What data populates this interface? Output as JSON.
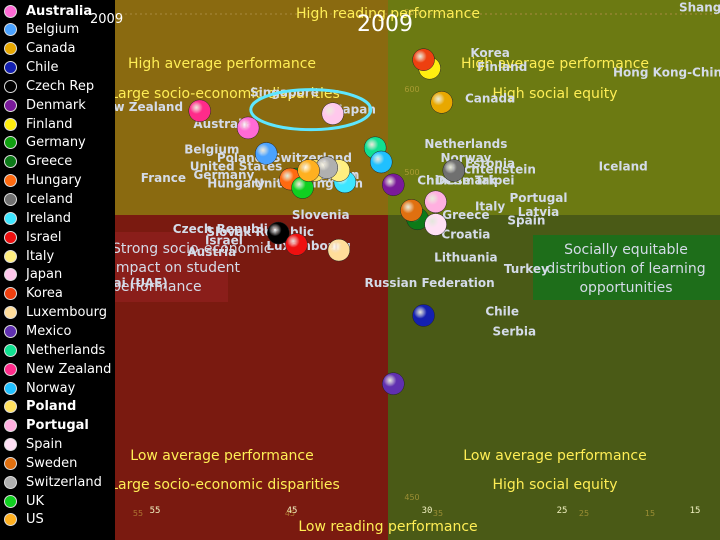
{
  "year": "2009",
  "colors": {
    "q_top_left": "#8a6a10",
    "q_top_right": "#6c7a12",
    "q_bottom_left": "#7a1a10",
    "q_bottom_right": "#4a5a16",
    "equity_box": "#1e6e1a",
    "disparity_box": "#8a1e1a",
    "quadrant_text": "#ffee55",
    "country_text": "#d4dbe8",
    "faded_text": "#d0b048"
  },
  "quadrant_labels": {
    "top": "High reading performance",
    "bottom": "Low reading performance",
    "tl_line1": "High average performance",
    "tl_line2": "Large socio-economic disparities",
    "tr_line1": "High average performance",
    "tr_line2": "High social equity",
    "bl_line1": "Low average performance",
    "bl_line2": "Large socio-economic disparities",
    "br_line1": "Low average performance",
    "br_line2": "High social equity",
    "strong_impact": "Strong socio-economic impact on student performance",
    "socially_equitable": "Socially equitable distribution of learning opportunities"
  },
  "chart_data": {
    "type": "scatter",
    "title": "2009",
    "xlabel": "",
    "ylabel": "",
    "x_ticks": [
      "55",
      "45",
      "30",
      "25",
      "15"
    ],
    "faded_ticks": [
      "55",
      "45",
      "35",
      "25",
      "15",
      "600",
      "500",
      "450",
      "550"
    ],
    "xlim": [
      60,
      10
    ],
    "ylim": [
      370,
      560
    ],
    "country_labels": [
      {
        "text": "Shanghai-China",
        "x": 9,
        "y": 556
      },
      {
        "text": "Korea",
        "x": 29,
        "y": 540
      },
      {
        "text": "Finland",
        "x": 28,
        "y": 535
      },
      {
        "text": "Hong Kong-China",
        "x": 14,
        "y": 533
      },
      {
        "text": "Canada",
        "x": 29,
        "y": 524
      },
      {
        "text": "Singapore",
        "x": 46,
        "y": 526
      },
      {
        "text": "New Zealand",
        "x": 58,
        "y": 521
      },
      {
        "text": "Japan",
        "x": 40,
        "y": 520
      },
      {
        "text": "Australia",
        "x": 51,
        "y": 515
      },
      {
        "text": "Netherlands",
        "x": 31,
        "y": 508
      },
      {
        "text": "Belgium",
        "x": 52,
        "y": 506
      },
      {
        "text": "Norway",
        "x": 31,
        "y": 503
      },
      {
        "text": "Estonia",
        "x": 29,
        "y": 501
      },
      {
        "text": "Poland, Switzerland",
        "x": 46,
        "y": 503
      },
      {
        "text": "United States",
        "x": 50,
        "y": 500
      },
      {
        "text": "Iceland",
        "x": 18,
        "y": 500
      },
      {
        "text": "Liechtenstein",
        "x": 29,
        "y": 499
      },
      {
        "text": "Germany",
        "x": 51,
        "y": 497
      },
      {
        "text": "Sweden",
        "x": 42,
        "y": 497
      },
      {
        "text": "Ireland",
        "x": 42,
        "y": 496
      },
      {
        "text": "Chinese Taipei",
        "x": 31,
        "y": 495
      },
      {
        "text": "France",
        "x": 56,
        "y": 496
      },
      {
        "text": "Hungary",
        "x": 50,
        "y": 494
      },
      {
        "text": "Denmark",
        "x": 31,
        "y": 495
      },
      {
        "text": "United Kingdom",
        "x": 44,
        "y": 494
      },
      {
        "text": "Portugal",
        "x": 25,
        "y": 489
      },
      {
        "text": "Italy",
        "x": 29,
        "y": 486
      },
      {
        "text": "Latvia",
        "x": 25,
        "y": 484
      },
      {
        "text": "Greece",
        "x": 31,
        "y": 483
      },
      {
        "text": "Spain",
        "x": 26,
        "y": 481
      },
      {
        "text": "Slovenia",
        "x": 43,
        "y": 483
      },
      {
        "text": "Czech Republic",
        "x": 51,
        "y": 478
      },
      {
        "text": "Slovak Republic",
        "x": 48,
        "y": 477
      },
      {
        "text": "Israel",
        "x": 51,
        "y": 474
      },
      {
        "text": "Luxembourg",
        "x": 44,
        "y": 472
      },
      {
        "text": "Croatia",
        "x": 31,
        "y": 476
      },
      {
        "text": "Austria",
        "x": 52,
        "y": 470
      },
      {
        "text": "Lithuania",
        "x": 31,
        "y": 468
      },
      {
        "text": "Turkey",
        "x": 26,
        "y": 464
      },
      {
        "text": "Dubai (UAE)",
        "x": 59,
        "y": 459
      },
      {
        "text": "Russian Federation",
        "x": 34,
        "y": 459
      },
      {
        "text": "Chile",
        "x": 28,
        "y": 449
      },
      {
        "text": "Serbia",
        "x": 27,
        "y": 442
      }
    ],
    "series": [
      {
        "name": "Australia",
        "color": "#ff6ad5",
        "x": 49,
        "y": 515
      },
      {
        "name": "Belgium",
        "color": "#4aa2ff",
        "x": 47.5,
        "y": 506
      },
      {
        "name": "Canada",
        "color": "#e8a800",
        "x": 33,
        "y": 524
      },
      {
        "name": "Chile",
        "color": "#1420b0",
        "x": 34.5,
        "y": 449
      },
      {
        "name": "Czech Rep",
        "color": "#000000",
        "x": 46.5,
        "y": 478
      },
      {
        "name": "Denmark",
        "color": "#7a1a9a",
        "x": 37,
        "y": 495
      },
      {
        "name": "Finland",
        "color": "#ffee10",
        "x": 34,
        "y": 536
      },
      {
        "name": "Germany",
        "color": "#10a010",
        "x": 45,
        "y": 497
      },
      {
        "name": "Greece",
        "color": "#0c7a18",
        "x": 35,
        "y": 483
      },
      {
        "name": "Hungary",
        "color": "#ff6a10",
        "x": 45.5,
        "y": 497
      },
      {
        "name": "Iceland",
        "color": "#707070",
        "x": 32,
        "y": 500
      },
      {
        "name": "Ireland",
        "color": "#3ee6ff",
        "x": 41,
        "y": 496
      },
      {
        "name": "Israel",
        "color": "#ee1010",
        "x": 45,
        "y": 474
      },
      {
        "name": "Italy",
        "color": "#ffee80",
        "x": 41.5,
        "y": 500
      },
      {
        "name": "Japan",
        "color": "#ffc8ec",
        "x": 42,
        "y": 520
      },
      {
        "name": "Korea",
        "color": "#ee4010",
        "x": 34.5,
        "y": 539
      },
      {
        "name": "Luxembourg",
        "color": "#ffdd9a",
        "x": 41.5,
        "y": 472
      },
      {
        "name": "Mexico",
        "color": "#6030b0",
        "x": 37,
        "y": 425
      },
      {
        "name": "Netherlands",
        "color": "#10e090",
        "x": 38.5,
        "y": 508
      },
      {
        "name": "New Zealand",
        "color": "#ff2b8a",
        "x": 53,
        "y": 521
      },
      {
        "name": "Norway",
        "color": "#20c0ff",
        "x": 38,
        "y": 503
      },
      {
        "name": "Poland",
        "color": "#ffe060",
        "x": 43.5,
        "y": 500
      },
      {
        "name": "Portugal",
        "color": "#ffb0e0",
        "x": 33.5,
        "y": 489
      },
      {
        "name": "Spain",
        "color": "#ffe0f4",
        "x": 33.5,
        "y": 481
      },
      {
        "name": "Sweden",
        "color": "#e07010",
        "x": 35.5,
        "y": 486
      },
      {
        "name": "Switzerland",
        "color": "#b0b0b0",
        "x": 42.5,
        "y": 501
      },
      {
        "name": "UK",
        "color": "#10d020",
        "x": 44.5,
        "y": 494
      },
      {
        "name": "US",
        "color": "#ffb020",
        "x": 44,
        "y": 500
      }
    ],
    "highlight": "Japan",
    "legend_position": "left"
  },
  "legend": [
    {
      "label": "Australia",
      "bold": true
    },
    {
      "label": "Belgium",
      "bold": false
    },
    {
      "label": "Canada",
      "bold": false
    },
    {
      "label": "Chile",
      "bold": false
    },
    {
      "label": "Czech Rep",
      "bold": false
    },
    {
      "label": "Denmark",
      "bold": false
    },
    {
      "label": "Finland",
      "bold": false
    },
    {
      "label": "Germany",
      "bold": false
    },
    {
      "label": "Greece",
      "bold": false
    },
    {
      "label": "Hungary",
      "bold": false
    },
    {
      "label": "Iceland",
      "bold": false
    },
    {
      "label": "Ireland",
      "bold": false
    },
    {
      "label": "Israel",
      "bold": false
    },
    {
      "label": "Italy",
      "bold": false
    },
    {
      "label": "Japan",
      "bold": false
    },
    {
      "label": "Korea",
      "bold": false
    },
    {
      "label": "Luxembourg",
      "bold": false
    },
    {
      "label": "Mexico",
      "bold": false
    },
    {
      "label": "Netherlands",
      "bold": false
    },
    {
      "label": "New Zealand",
      "bold": false
    },
    {
      "label": "Norway",
      "bold": false
    },
    {
      "label": "Poland",
      "bold": true
    },
    {
      "label": "Portugal",
      "bold": true
    },
    {
      "label": "Spain",
      "bold": false
    },
    {
      "label": "Sweden",
      "bold": false
    },
    {
      "label": "Switzerland",
      "bold": false
    },
    {
      "label": "UK",
      "bold": false
    },
    {
      "label": "US",
      "bold": false
    }
  ]
}
